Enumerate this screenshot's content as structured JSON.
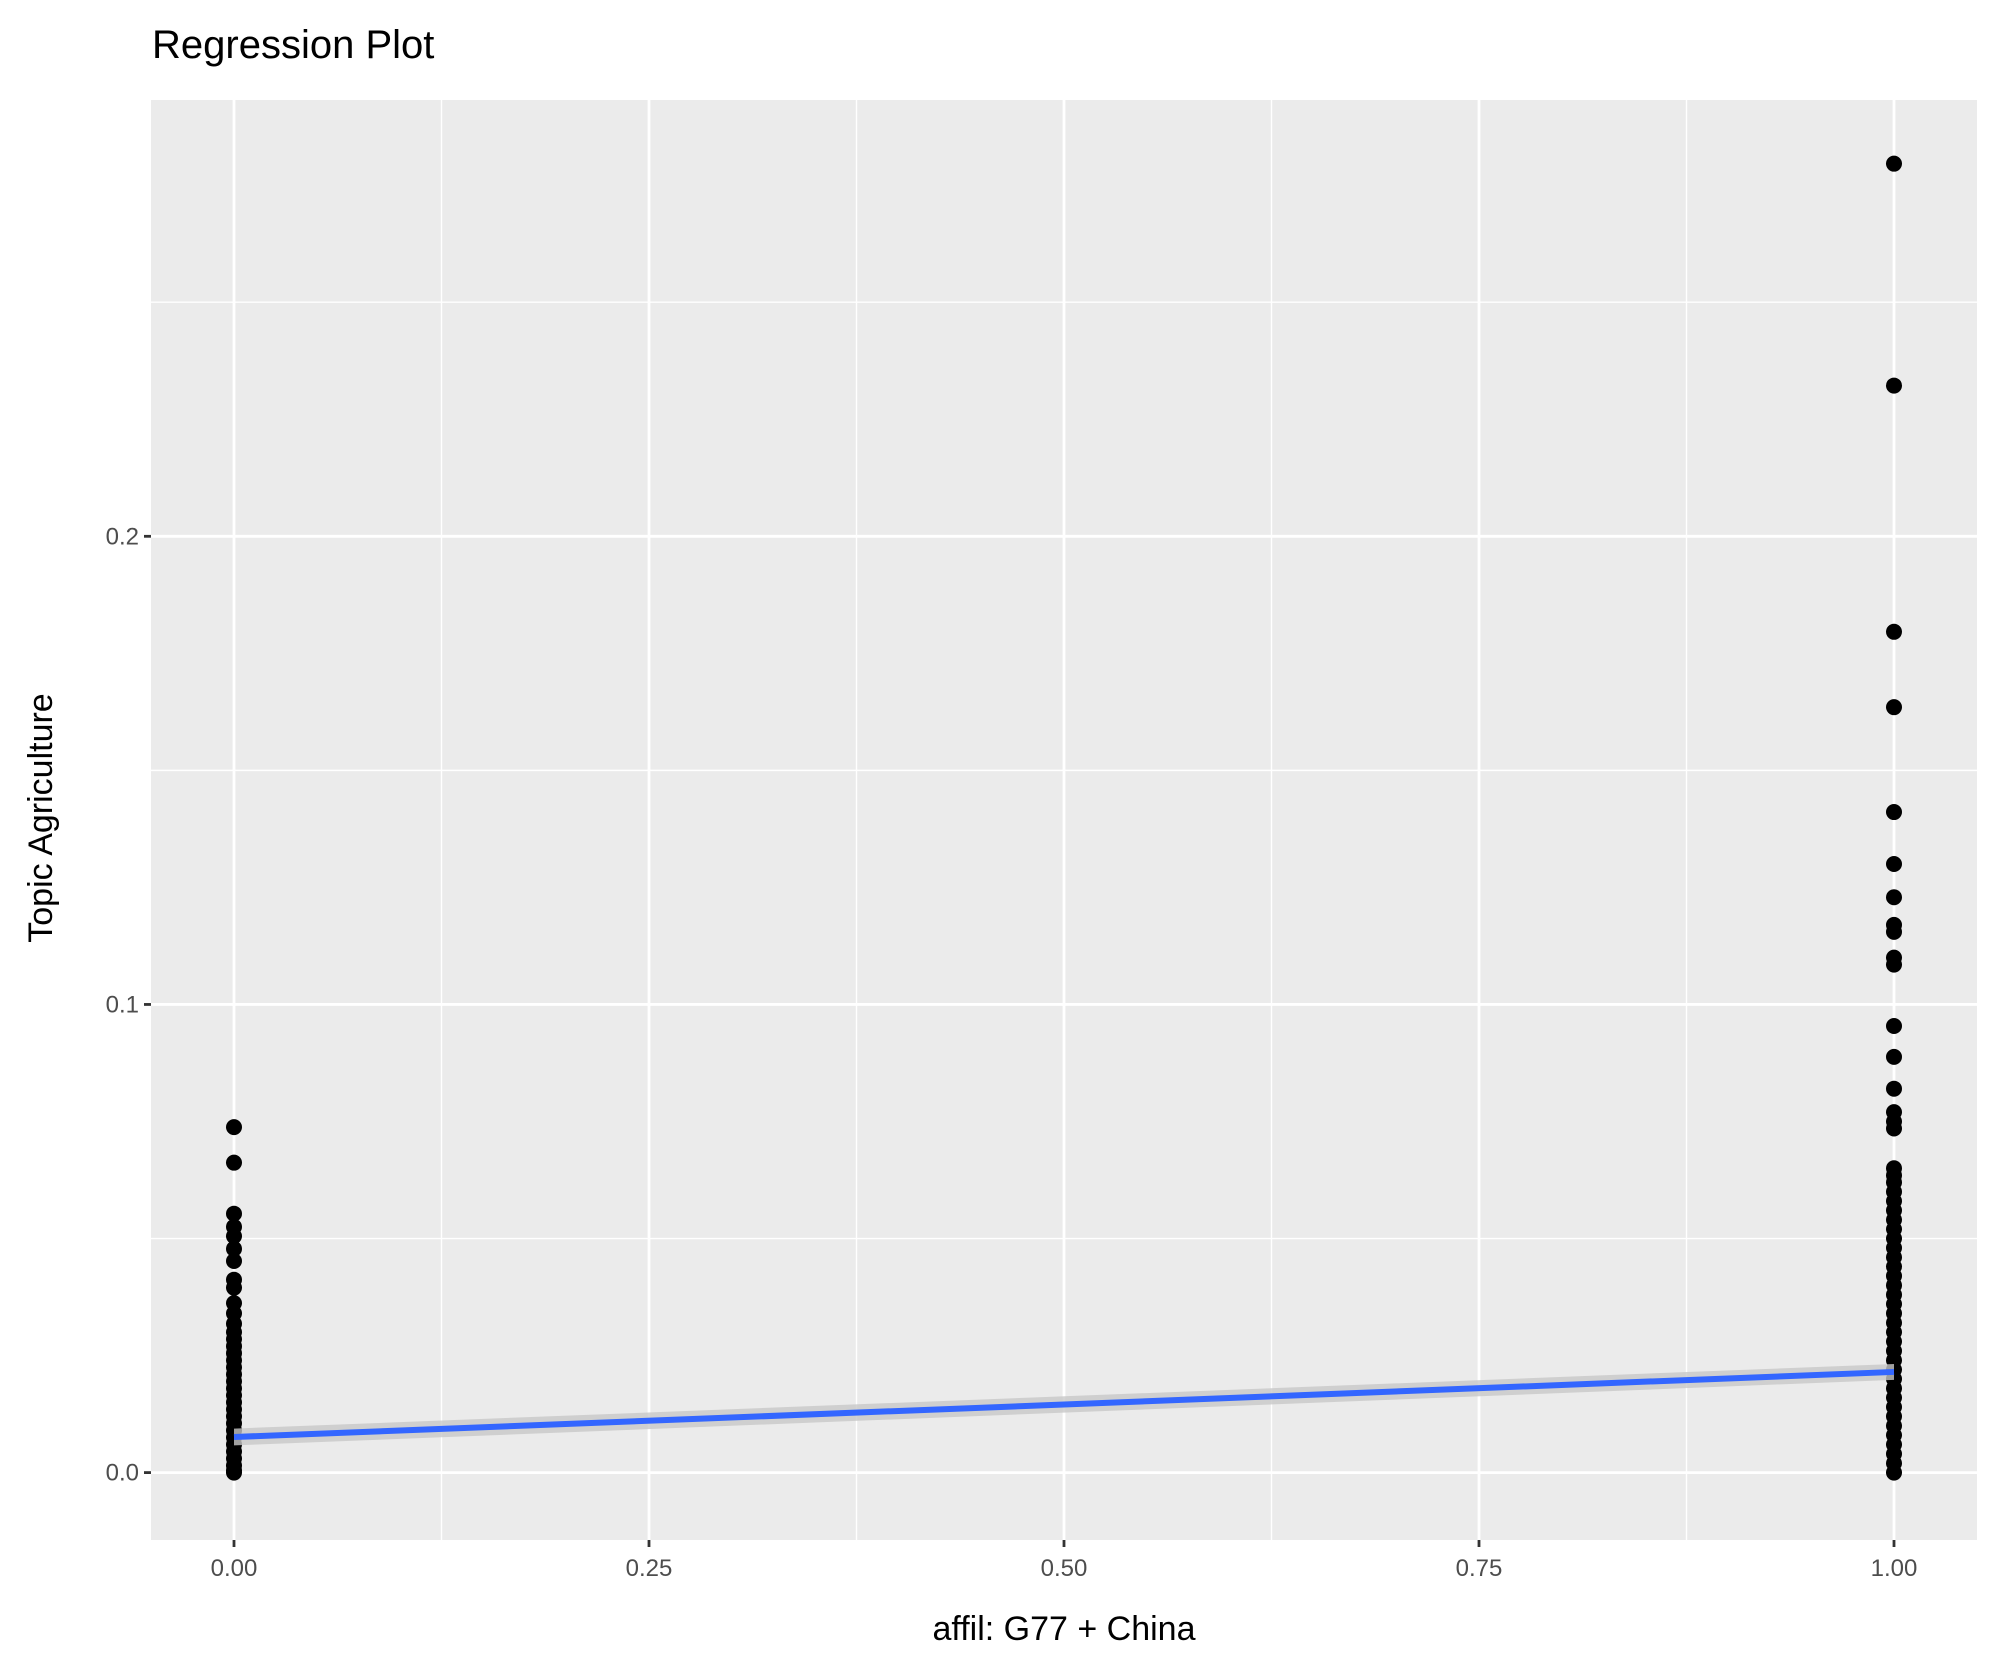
{
  "chart_data": {
    "type": "scatter",
    "title": "Regression Plot",
    "x_label": "affil: G77 + China",
    "y_label": "Topic Agriculture",
    "xlim": [
      -0.05,
      1.05
    ],
    "ylim": [
      -0.0144,
      0.2932
    ],
    "xticks": [
      {
        "value": 0,
        "label": "0.00"
      },
      {
        "value": 0.25,
        "label": "0.25"
      },
      {
        "value": 0.5,
        "label": "0.50"
      },
      {
        "value": 0.75,
        "label": "0.75"
      },
      {
        "value": 1,
        "label": "1.00"
      }
    ],
    "yticks": [
      {
        "value": 0,
        "label": "0.0"
      },
      {
        "value": 0.1,
        "label": "0.1"
      },
      {
        "value": 0.2,
        "label": "0.2"
      }
    ],
    "x_minor_grid": [
      0.125,
      0.375,
      0.625,
      0.875
    ],
    "y_minor_grid": [
      0.05,
      0.15,
      0.25
    ],
    "grid": true,
    "series": [
      {
        "color": "#000000",
        "x": [
          0,
          0,
          0,
          0,
          0,
          0,
          0,
          0,
          0,
          0,
          0,
          0,
          0,
          0,
          0,
          0,
          0,
          0,
          0,
          0,
          0,
          0,
          0,
          0,
          0,
          0,
          0,
          0,
          0,
          0,
          0,
          0,
          0,
          0,
          1,
          1,
          1,
          1,
          1,
          1,
          1,
          1,
          1,
          1,
          1,
          1,
          1,
          1,
          1,
          1,
          1,
          1,
          1,
          1,
          1,
          1,
          1,
          1,
          1,
          1,
          1,
          1,
          1,
          1,
          1,
          1,
          1,
          1,
          1,
          1,
          1,
          1,
          1,
          1,
          1,
          1,
          1,
          1,
          1,
          1,
          1,
          1,
          1,
          1,
          1
        ],
        "values": [
          0.0738,
          0.0662,
          0.0553,
          0.0525,
          0.0505,
          0.0478,
          0.0452,
          0.0412,
          0.0395,
          0.0362,
          0.034,
          0.0318,
          0.03,
          0.0285,
          0.027,
          0.0255,
          0.024,
          0.0225,
          0.021,
          0.0195,
          0.018,
          0.0165,
          0.015,
          0.0135,
          0.012,
          0.0105,
          0.009,
          0.0075,
          0.006,
          0.0045,
          0.003,
          0.0015,
          0.0005,
          0,
          0.2796,
          0.2322,
          0.1796,
          0.1635,
          0.1411,
          0.13,
          0.1229,
          0.117,
          0.1155,
          0.11,
          0.1085,
          0.0954,
          0.0888,
          0.082,
          0.077,
          0.075,
          0.0735,
          0.065,
          0.0635,
          0.062,
          0.06,
          0.058,
          0.056,
          0.054,
          0.052,
          0.05,
          0.048,
          0.046,
          0.044,
          0.042,
          0.04,
          0.038,
          0.036,
          0.034,
          0.032,
          0.03,
          0.028,
          0.026,
          0.024,
          0.022,
          0.02,
          0.018,
          0.016,
          0.014,
          0.012,
          0.01,
          0.008,
          0.006,
          0.004,
          0.002,
          0
        ]
      }
    ],
    "smooth": {
      "color": "#3366ff",
      "band_color": "#c8c8c8",
      "x": [
        0,
        1
      ],
      "values": [
        0.0076,
        0.0215
      ],
      "lower": [
        0.0058,
        0.0198
      ],
      "upper": [
        0.0094,
        0.0232
      ]
    }
  }
}
